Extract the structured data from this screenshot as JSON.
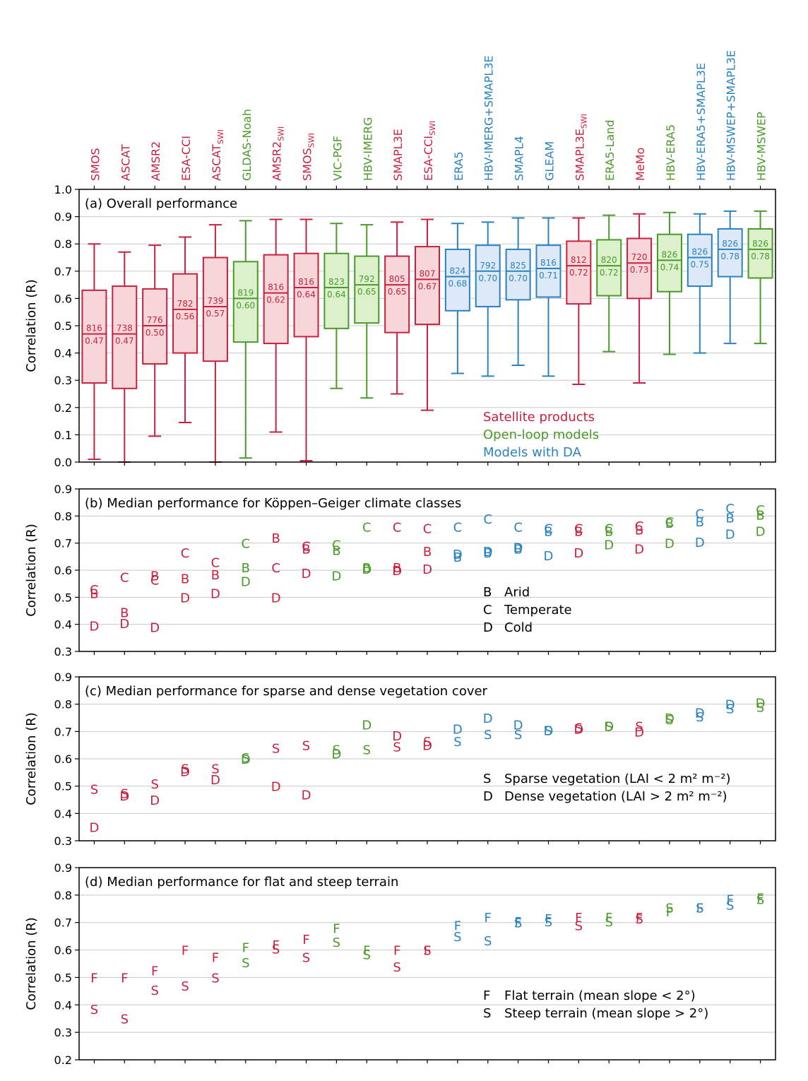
{
  "colors": {
    "sat": "#c8213f",
    "sat_fill": "#f7d6da",
    "ol": "#4a9a2a",
    "ol_fill": "#dcf0cc",
    "da": "#2b82c0",
    "da_fill": "#dde9f6",
    "grid": "#c8c8c8",
    "axis": "#000000"
  },
  "products": [
    {
      "name": "SMOS",
      "group": "sat"
    },
    {
      "name": "ASCAT",
      "group": "sat"
    },
    {
      "name": "AMSR2",
      "group": "sat"
    },
    {
      "name": "ESA-CCI",
      "group": "sat"
    },
    {
      "name": "ASCAT",
      "sub": "SWI",
      "group": "sat"
    },
    {
      "name": "GLDAS-Noah",
      "group": "ol"
    },
    {
      "name": "AMSR2",
      "sub": "SWI",
      "group": "sat"
    },
    {
      "name": "SMOS",
      "sub": "SWI",
      "group": "sat"
    },
    {
      "name": "VIC-PGF",
      "group": "ol"
    },
    {
      "name": "HBV-IMERG",
      "group": "ol"
    },
    {
      "name": "SMAPL3E",
      "group": "sat"
    },
    {
      "name": "ESA-CCI",
      "sub": "SWI",
      "group": "sat"
    },
    {
      "name": "ERA5",
      "group": "da"
    },
    {
      "name": "HBV-IMERG+SMAPL3E",
      "group": "da"
    },
    {
      "name": "SMAPL4",
      "group": "da"
    },
    {
      "name": "GLEAM",
      "group": "da"
    },
    {
      "name": "SMAPL3E",
      "sub": "SWI",
      "group": "sat"
    },
    {
      "name": "ERA5-Land",
      "group": "ol"
    },
    {
      "name": "MeMo",
      "group": "sat"
    },
    {
      "name": "HBV-ERA5",
      "group": "ol"
    },
    {
      "name": "HBV-ERA5+SMAPL3E",
      "group": "da"
    },
    {
      "name": "HBV-MSWEP+SMAPL3E",
      "group": "da"
    },
    {
      "name": "HBV-MSWEP",
      "group": "ol"
    }
  ],
  "chart_data": [
    {
      "type": "box",
      "title": "(a) Overall performance",
      "ylabel": "Correlation (R)",
      "ylim": [
        0.0,
        1.0
      ],
      "yticks": [
        "0.0",
        "0.1",
        "0.2",
        "0.3",
        "0.4",
        "0.5",
        "0.6",
        "0.7",
        "0.8",
        "0.9",
        "1.0"
      ],
      "legend": [
        {
          "label": "Satellite products",
          "group": "sat"
        },
        {
          "label": "Open-loop models",
          "group": "ol"
        },
        {
          "label": "Models with DA",
          "group": "da"
        }
      ],
      "boxes": [
        {
          "wlo": 0.01,
          "q1": 0.29,
          "med": 0.47,
          "q3": 0.63,
          "whi": 0.8,
          "n": "816",
          "label": "0.47"
        },
        {
          "wlo": 0.0,
          "q1": 0.27,
          "med": 0.47,
          "q3": 0.645,
          "whi": 0.77,
          "n": "738",
          "label": "0.47"
        },
        {
          "wlo": 0.095,
          "q1": 0.36,
          "med": 0.5,
          "q3": 0.635,
          "whi": 0.795,
          "n": "776",
          "label": "0.50"
        },
        {
          "wlo": 0.145,
          "q1": 0.4,
          "med": 0.56,
          "q3": 0.69,
          "whi": 0.825,
          "n": "782",
          "label": "0.56"
        },
        {
          "wlo": 0.0,
          "q1": 0.37,
          "med": 0.57,
          "q3": 0.75,
          "whi": 0.87,
          "n": "739",
          "label": "0.57"
        },
        {
          "wlo": 0.015,
          "q1": 0.44,
          "med": 0.6,
          "q3": 0.735,
          "whi": 0.885,
          "n": "819",
          "label": "0.60"
        },
        {
          "wlo": 0.11,
          "q1": 0.435,
          "med": 0.62,
          "q3": 0.76,
          "whi": 0.89,
          "n": "816",
          "label": "0.62"
        },
        {
          "wlo": 0.005,
          "q1": 0.46,
          "med": 0.64,
          "q3": 0.765,
          "whi": 0.89,
          "n": "816",
          "label": "0.64"
        },
        {
          "wlo": 0.27,
          "q1": 0.49,
          "med": 0.64,
          "q3": 0.765,
          "whi": 0.875,
          "n": "823",
          "label": "0.64"
        },
        {
          "wlo": 0.235,
          "q1": 0.51,
          "med": 0.65,
          "q3": 0.755,
          "whi": 0.87,
          "n": "792",
          "label": "0.65"
        },
        {
          "wlo": 0.25,
          "q1": 0.475,
          "med": 0.65,
          "q3": 0.755,
          "whi": 0.88,
          "n": "805",
          "label": "0.65"
        },
        {
          "wlo": 0.19,
          "q1": 0.505,
          "med": 0.67,
          "q3": 0.79,
          "whi": 0.89,
          "n": "807",
          "label": "0.67"
        },
        {
          "wlo": 0.325,
          "q1": 0.555,
          "med": 0.68,
          "q3": 0.78,
          "whi": 0.875,
          "n": "824",
          "label": "0.68"
        },
        {
          "wlo": 0.315,
          "q1": 0.57,
          "med": 0.7,
          "q3": 0.795,
          "whi": 0.88,
          "n": "792",
          "label": "0.70"
        },
        {
          "wlo": 0.355,
          "q1": 0.595,
          "med": 0.7,
          "q3": 0.78,
          "whi": 0.895,
          "n": "825",
          "label": "0.70"
        },
        {
          "wlo": 0.315,
          "q1": 0.605,
          "med": 0.71,
          "q3": 0.795,
          "whi": 0.895,
          "n": "816",
          "label": "0.71"
        },
        {
          "wlo": 0.285,
          "q1": 0.58,
          "med": 0.72,
          "q3": 0.81,
          "whi": 0.895,
          "n": "812",
          "label": "0.72"
        },
        {
          "wlo": 0.405,
          "q1": 0.61,
          "med": 0.72,
          "q3": 0.815,
          "whi": 0.905,
          "n": "820",
          "label": "0.72"
        },
        {
          "wlo": 0.29,
          "q1": 0.6,
          "med": 0.73,
          "q3": 0.82,
          "whi": 0.91,
          "n": "720",
          "label": "0.73"
        },
        {
          "wlo": 0.395,
          "q1": 0.625,
          "med": 0.74,
          "q3": 0.835,
          "whi": 0.915,
          "n": "826",
          "label": "0.74"
        },
        {
          "wlo": 0.4,
          "q1": 0.645,
          "med": 0.75,
          "q3": 0.835,
          "whi": 0.91,
          "n": "826",
          "label": "0.75"
        },
        {
          "wlo": 0.435,
          "q1": 0.68,
          "med": 0.78,
          "q3": 0.855,
          "whi": 0.92,
          "n": "826",
          "label": "0.78"
        },
        {
          "wlo": 0.435,
          "q1": 0.675,
          "med": 0.78,
          "q3": 0.855,
          "whi": 0.92,
          "n": "826",
          "label": "0.78"
        }
      ]
    },
    {
      "type": "scatter",
      "title": "(b) Median performance for Köppen–Geiger climate classes",
      "ylabel": "Correlation (R)",
      "ylim": [
        0.3,
        0.9
      ],
      "yticks": [
        "0.3",
        "0.4",
        "0.5",
        "0.6",
        "0.7",
        "0.8",
        "0.9"
      ],
      "legend": [
        {
          "code": "B",
          "label": "Arid"
        },
        {
          "code": "C",
          "label": "Temperate"
        },
        {
          "code": "D",
          "label": "Cold"
        }
      ],
      "series": [
        {
          "code": "B",
          "values": [
            0.515,
            0.445,
            0.58,
            0.57,
            0.585,
            0.61,
            0.72,
            0.68,
            0.675,
            0.61,
            0.61,
            0.67,
            0.65,
            0.665,
            0.68,
            0.745,
            0.745,
            0.745,
            0.75,
            0.775,
            0.78,
            0.795,
            0.805
          ]
        },
        {
          "code": "C",
          "values": [
            0.53,
            0.575,
            0.565,
            0.665,
            0.63,
            0.7,
            0.61,
            0.69,
            0.695,
            0.76,
            0.76,
            0.755,
            0.76,
            0.79,
            0.76,
            0.755,
            0.755,
            0.755,
            0.765,
            0.78,
            0.81,
            0.83,
            0.825
          ]
        },
        {
          "code": "D",
          "values": [
            0.395,
            0.405,
            0.39,
            0.5,
            0.515,
            0.56,
            0.5,
            0.59,
            0.58,
            0.605,
            0.6,
            0.605,
            0.66,
            0.67,
            0.685,
            0.655,
            0.665,
            0.695,
            0.68,
            0.7,
            0.705,
            0.735,
            0.745
          ]
        }
      ]
    },
    {
      "type": "scatter",
      "title": "(c) Median performance for sparse and dense vegetation cover",
      "ylabel": "Correlation (R)",
      "ylim": [
        0.3,
        0.9
      ],
      "yticks": [
        "0.3",
        "0.4",
        "0.5",
        "0.6",
        "0.7",
        "0.8",
        "0.9"
      ],
      "legend": [
        {
          "code": "S",
          "label": "Sparse vegetation (LAI < 2 m² m⁻²)"
        },
        {
          "code": "D",
          "label": "Dense vegetation (LAI > 2 m² m⁻²)"
        }
      ],
      "series": [
        {
          "code": "S",
          "values": [
            0.49,
            0.475,
            0.51,
            0.565,
            0.565,
            0.605,
            0.64,
            0.65,
            0.635,
            0.635,
            0.645,
            0.665,
            0.665,
            0.69,
            0.69,
            0.705,
            0.715,
            0.72,
            0.72,
            0.745,
            0.755,
            0.785,
            0.79
          ]
        },
        {
          "code": "D",
          "values": [
            0.35,
            0.465,
            0.45,
            0.555,
            0.525,
            0.6,
            0.5,
            0.47,
            0.62,
            0.725,
            0.685,
            0.65,
            0.71,
            0.75,
            0.725,
            0.705,
            0.71,
            0.72,
            0.7,
            0.75,
            0.77,
            0.8,
            0.805
          ]
        }
      ]
    },
    {
      "type": "scatter",
      "title": "(d) Median performance for flat and steep terrain",
      "ylabel": "Correlation (R)",
      "ylim": [
        0.2,
        0.9
      ],
      "yticks": [
        "0.2",
        "0.3",
        "0.4",
        "0.5",
        "0.6",
        "0.7",
        "0.8",
        "0.9"
      ],
      "legend": [
        {
          "code": "F",
          "label": "Flat terrain (mean slope < 2°)"
        },
        {
          "code": "S",
          "label": "Steep terrain (mean slope > 2°)"
        }
      ],
      "series": [
        {
          "code": "F",
          "values": [
            0.5,
            0.5,
            0.525,
            0.6,
            0.575,
            0.61,
            0.62,
            0.64,
            0.68,
            0.6,
            0.6,
            0.6,
            0.69,
            0.72,
            0.705,
            0.715,
            0.72,
            0.72,
            0.72,
            0.74,
            0.755,
            0.785,
            0.79
          ]
        },
        {
          "code": "S",
          "values": [
            0.385,
            0.35,
            0.455,
            0.47,
            0.5,
            0.555,
            0.605,
            0.575,
            0.63,
            0.585,
            0.54,
            0.6,
            0.65,
            0.635,
            0.7,
            0.705,
            0.69,
            0.705,
            0.715,
            0.755,
            0.755,
            0.765,
            0.785
          ]
        }
      ]
    }
  ]
}
